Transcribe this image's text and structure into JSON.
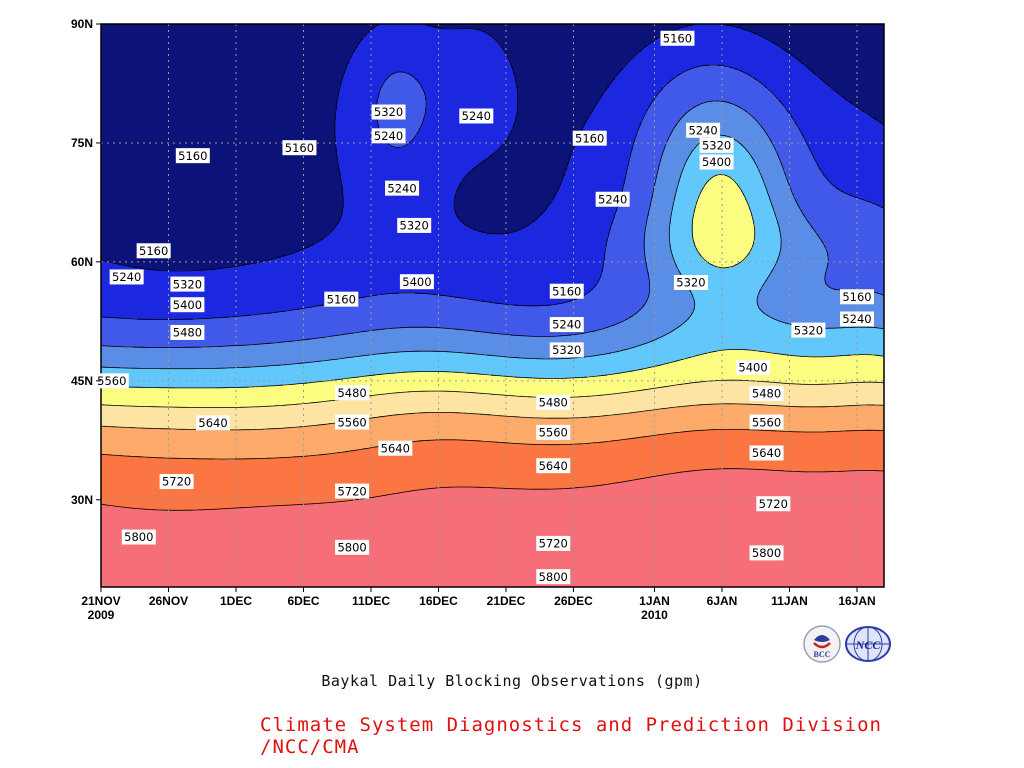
{
  "chart_data": {
    "type": "heatmap",
    "subtype": "filled-contour",
    "title": "Baykal Daily Blocking Observations (gpm)",
    "credit": "Climate System Diagnostics and Prediction Division /NCC/CMA",
    "x_axis": {
      "start": "2009-11-21",
      "end": "2010-01-18",
      "ticks": [
        {
          "day": 0,
          "label": "21NOV",
          "sub": "2009"
        },
        {
          "day": 5,
          "label": "26NOV",
          "sub": ""
        },
        {
          "day": 10,
          "label": "1DEC",
          "sub": ""
        },
        {
          "day": 15,
          "label": "6DEC",
          "sub": ""
        },
        {
          "day": 20,
          "label": "11DEC",
          "sub": ""
        },
        {
          "day": 25,
          "label": "16DEC",
          "sub": ""
        },
        {
          "day": 30,
          "label": "21DEC",
          "sub": ""
        },
        {
          "day": 35,
          "label": "26DEC",
          "sub": ""
        },
        {
          "day": 41,
          "label": "1JAN",
          "sub": "2010"
        },
        {
          "day": 46,
          "label": "6JAN",
          "sub": ""
        },
        {
          "day": 51,
          "label": "11JAN",
          "sub": ""
        },
        {
          "day": 56,
          "label": "16JAN",
          "sub": ""
        }
      ]
    },
    "y_axis": {
      "range": [
        19,
        90
      ],
      "ticks": [
        {
          "lat": 30,
          "label": "30N"
        },
        {
          "lat": 45,
          "label": "45N"
        },
        {
          "lat": 60,
          "label": "60N"
        },
        {
          "lat": 75,
          "label": "75N"
        },
        {
          "lat": 90,
          "label": "90N"
        }
      ]
    },
    "grid": true,
    "levels": [
      5160,
      5240,
      5320,
      5400,
      5480,
      5560,
      5640,
      5720,
      5800,
      5880
    ],
    "colors": [
      "#0b1278",
      "#1c27e0",
      "#4159e8",
      "#5a8ee6",
      "#62c7fa",
      "#fcfc80",
      "#fde4a3",
      "#fdaa6a",
      "#fb7642",
      "#f56e78",
      "#d8163c"
    ],
    "contour_labels": [
      {
        "value": "5160",
        "day": 6.8,
        "lat": 73.4
      },
      {
        "value": "5160",
        "day": 14.7,
        "lat": 74.4
      },
      {
        "value": "5160",
        "day": 36.2,
        "lat": 75.6
      },
      {
        "value": "5160",
        "day": 42.7,
        "lat": 88.2
      },
      {
        "value": "5160",
        "day": 3.9,
        "lat": 61.4
      },
      {
        "value": "5160",
        "day": 17.8,
        "lat": 55.3
      },
      {
        "value": "5160",
        "day": 34.5,
        "lat": 56.3
      },
      {
        "value": "5160",
        "day": 56.0,
        "lat": 55.6
      },
      {
        "value": "5240",
        "day": 27.8,
        "lat": 78.4
      },
      {
        "value": "5240",
        "day": 21.3,
        "lat": 75.9
      },
      {
        "value": "5240",
        "day": 22.3,
        "lat": 69.3
      },
      {
        "value": "5240",
        "day": 37.9,
        "lat": 67.9
      },
      {
        "value": "5240",
        "day": 44.6,
        "lat": 76.6
      },
      {
        "value": "5240",
        "day": 1.9,
        "lat": 58.1
      },
      {
        "value": "5240",
        "day": 34.5,
        "lat": 52.1
      },
      {
        "value": "5240",
        "day": 56.0,
        "lat": 52.8
      },
      {
        "value": "5320",
        "day": 21.3,
        "lat": 78.9
      },
      {
        "value": "5320",
        "day": 23.2,
        "lat": 64.6
      },
      {
        "value": "5320",
        "day": 45.6,
        "lat": 74.7
      },
      {
        "value": "5320",
        "day": 43.7,
        "lat": 57.4
      },
      {
        "value": "5320",
        "day": 6.4,
        "lat": 57.2
      },
      {
        "value": "5320",
        "day": 34.5,
        "lat": 48.9
      },
      {
        "value": "5320",
        "day": 52.4,
        "lat": 51.4
      },
      {
        "value": "5400",
        "day": 45.6,
        "lat": 72.6
      },
      {
        "value": "5400",
        "day": 6.4,
        "lat": 54.6
      },
      {
        "value": "5400",
        "day": 23.4,
        "lat": 57.5
      },
      {
        "value": "5400",
        "day": 48.3,
        "lat": 46.7
      },
      {
        "value": "5480",
        "day": 6.4,
        "lat": 51.1
      },
      {
        "value": "5480",
        "day": 18.6,
        "lat": 43.5
      },
      {
        "value": "5480",
        "day": 33.5,
        "lat": 42.3
      },
      {
        "value": "5480",
        "day": 49.3,
        "lat": 43.4
      },
      {
        "value": "5560",
        "day": 0.8,
        "lat": 45.0
      },
      {
        "value": "5560",
        "day": 18.6,
        "lat": 39.8
      },
      {
        "value": "5560",
        "day": 33.5,
        "lat": 38.5
      },
      {
        "value": "5560",
        "day": 49.3,
        "lat": 39.8
      },
      {
        "value": "5640",
        "day": 8.3,
        "lat": 39.7
      },
      {
        "value": "5640",
        "day": 21.8,
        "lat": 36.5
      },
      {
        "value": "5640",
        "day": 33.5,
        "lat": 34.3
      },
      {
        "value": "5640",
        "day": 49.3,
        "lat": 35.9
      },
      {
        "value": "5720",
        "day": 5.6,
        "lat": 32.3
      },
      {
        "value": "5720",
        "day": 18.6,
        "lat": 31.1
      },
      {
        "value": "5720",
        "day": 33.5,
        "lat": 24.5
      },
      {
        "value": "5720",
        "day": 49.8,
        "lat": 29.5
      },
      {
        "value": "5800",
        "day": 2.8,
        "lat": 25.3
      },
      {
        "value": "5800",
        "day": 18.6,
        "lat": 24.0
      },
      {
        "value": "5800",
        "day": 33.5,
        "lat": 20.3
      },
      {
        "value": "5800",
        "day": 49.3,
        "lat": 23.3
      }
    ]
  },
  "logos": {
    "left": {
      "name": "bcc-logo",
      "text": "BCC"
    },
    "right": {
      "name": "ncc-logo",
      "text": "NCC"
    }
  },
  "credit_color": "#e01010"
}
